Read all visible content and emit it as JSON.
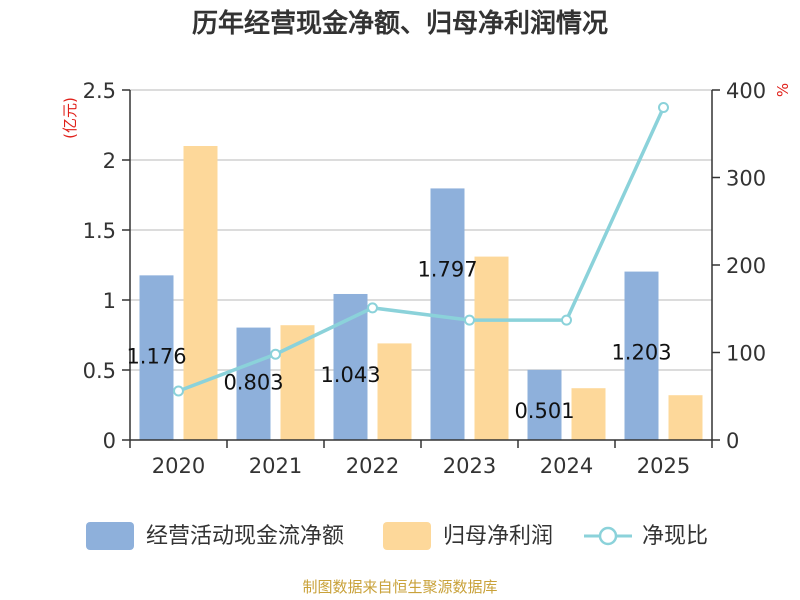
{
  "chart_data": {
    "type": "bar",
    "title": "历年经营现金净额、归母净利润情况",
    "categories": [
      "2020",
      "2021",
      "2022",
      "2023",
      "2024",
      "2025"
    ],
    "series": [
      {
        "name": "经营活动现金流净额",
        "kind": "bar",
        "axis": "left",
        "color": "#8eb0db",
        "values": [
          1.176,
          0.803,
          1.043,
          1.797,
          0.501,
          1.203
        ]
      },
      {
        "name": "归母净利润",
        "kind": "bar",
        "axis": "left",
        "color": "#fdd89a",
        "values": [
          2.1,
          0.82,
          0.69,
          1.31,
          0.37,
          0.32
        ]
      },
      {
        "name": "净现比",
        "kind": "line",
        "axis": "right",
        "color": "#8bd2da",
        "values": [
          56,
          98,
          151,
          137,
          137,
          380
        ]
      }
    ],
    "data_labels": [
      "1.176",
      "0.803",
      "1.043",
      "1.797",
      "0.501",
      "1.203"
    ],
    "y_left": {
      "label": "(亿元)",
      "min": 0,
      "max": 2.5,
      "ticks": [
        "0",
        "0.5",
        "1",
        "1.5",
        "2",
        "2.5"
      ]
    },
    "y_right": {
      "label": "%",
      "min": 0,
      "max": 400,
      "ticks": [
        "0",
        "100",
        "200",
        "300",
        "400"
      ]
    },
    "legend": [
      "经营活动现金流净额",
      "归母净利润",
      "净现比"
    ],
    "legend_position": "bottom",
    "grid": true
  },
  "source": "制图数据来自恒生聚源数据库"
}
